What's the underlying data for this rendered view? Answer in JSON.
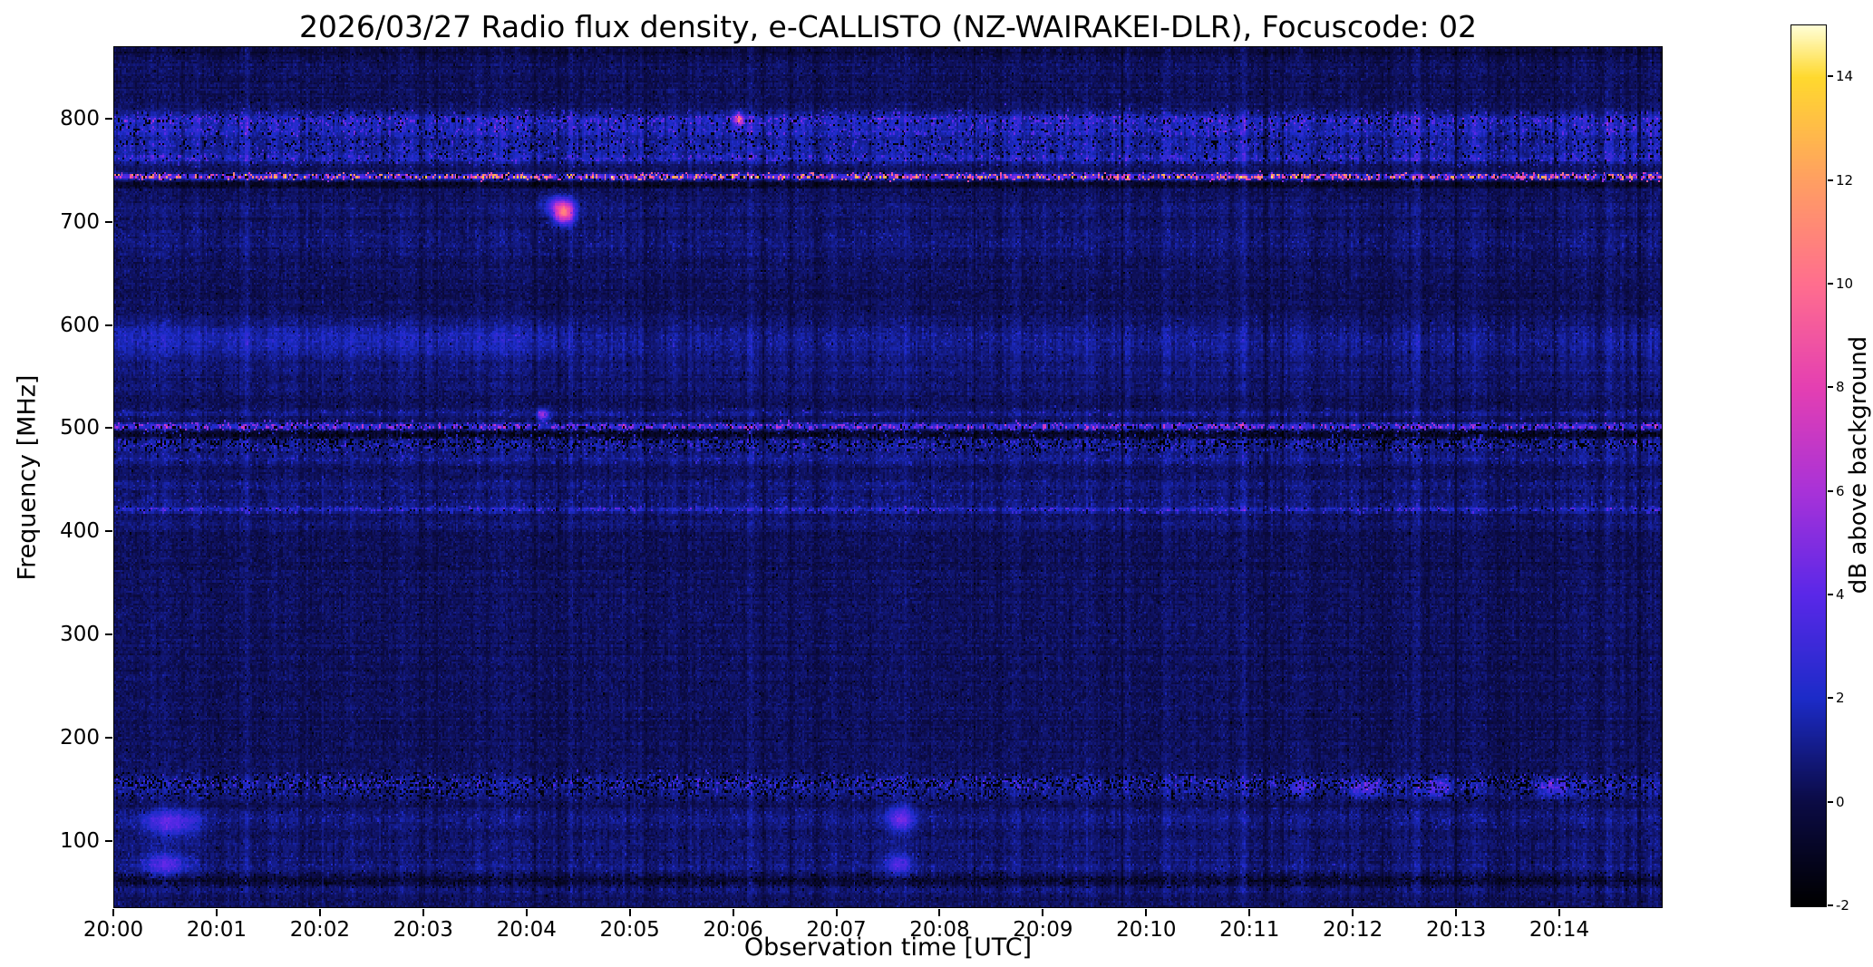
{
  "chart_data": {
    "type": "heatmap",
    "title": "2026/03/27  Radio flux density, e-CALLISTO (NZ-WAIRAKEI-DLR), Focuscode: 02",
    "xlabel": "Observation time [UTC]",
    "ylabel": "Frequency [MHz]",
    "colorbar_label": "dB above background",
    "x_ticks": [
      "20:00",
      "20:01",
      "20:02",
      "20:03",
      "20:04",
      "20:05",
      "20:06",
      "20:07",
      "20:08",
      "20:09",
      "20:10",
      "20:11",
      "20:12",
      "20:13",
      "20:14"
    ],
    "x_range_minutes": [
      0,
      15
    ],
    "y_ticks": [
      100,
      200,
      300,
      400,
      500,
      600,
      700,
      800
    ],
    "y_range_mhz": [
      35,
      870
    ],
    "colorbar_ticks": [
      -2,
      0,
      2,
      4,
      6,
      8,
      10,
      12,
      14
    ],
    "value_range_db": [
      -2,
      15
    ],
    "grid": false,
    "colormap": {
      "name": "gnuplot2-like",
      "stops": [
        [
          0.0,
          "#000000"
        ],
        [
          0.118,
          "#0b0b45"
        ],
        [
          0.235,
          "#1c2bc8"
        ],
        [
          0.353,
          "#5a28e8"
        ],
        [
          0.47,
          "#a832d8"
        ],
        [
          0.588,
          "#e43fb2"
        ],
        [
          0.706,
          "#ff6e8e"
        ],
        [
          0.824,
          "#ff9f62"
        ],
        [
          0.941,
          "#ffd92e"
        ],
        [
          1.0,
          "#ffffd8"
        ]
      ]
    },
    "noise": {
      "base": 0.35,
      "sigma": 0.3,
      "col_streak_sigma": 0.2,
      "row_sigma": 0.1,
      "pepper_p": 0.004,
      "pepper_amp": -1.8
    },
    "seed": 20260327,
    "bands": [
      {
        "f": 866,
        "w": 4,
        "a": -0.6
      },
      {
        "f": 800,
        "w": 5,
        "a": 1.6,
        "sp": 0.2,
        "sa": 2.2,
        "dp": 0.1,
        "da": -2.2
      },
      {
        "f": 789,
        "w": 4,
        "a": 1.3,
        "sp": 0.15,
        "sa": 1.8,
        "dp": 0.08,
        "da": -2.0
      },
      {
        "f": 776,
        "w": 6,
        "a": 1.1,
        "sp": 0.12,
        "sa": 1.6,
        "dp": 0.1,
        "da": -2.0
      },
      {
        "f": 763,
        "w": 4,
        "a": 1.4,
        "sp": 0.15,
        "sa": 1.8,
        "dp": 0.08,
        "da": -2.0
      },
      {
        "f": 745,
        "w": 1.8,
        "a": 3.5,
        "sp": 0.45,
        "sa": 7.5,
        "dp": 0.15,
        "da": -2.5
      },
      {
        "f": 737,
        "w": 2,
        "a": -1.2,
        "dp": 0.2,
        "da": -1.5
      },
      {
        "f": 712,
        "w": 6,
        "a": 0.3
      },
      {
        "f": 682,
        "w": 12,
        "a": 0.35,
        "sp": 0.05,
        "sa": 0.8
      },
      {
        "f": 591,
        "w": 9,
        "a": 0.7,
        "sp": 0.06,
        "sa": 0.9,
        "t0": 0,
        "t1": 4.4,
        "boost": 1.9
      },
      {
        "f": 575,
        "w": 6,
        "a": 0.5,
        "t0": 0,
        "t1": 4.4,
        "boost": 1.6
      },
      {
        "f": 558,
        "w": 6,
        "a": 0.45
      },
      {
        "f": 540,
        "w": 5,
        "a": 0.3
      },
      {
        "f": 515,
        "w": 3,
        "a": 0.5,
        "sp": 0.05,
        "sa": 1.5
      },
      {
        "f": 502,
        "w": 2.2,
        "a": 2.2,
        "sp": 0.35,
        "sa": 3.5,
        "dp": 0.12,
        "da": -2.5
      },
      {
        "f": 494,
        "w": 3,
        "a": -1.0,
        "sp": 0.08,
        "sa": 2.5,
        "dp": 0.3,
        "da": -1.8
      },
      {
        "f": 485,
        "w": 5,
        "a": 0.9,
        "sp": 0.18,
        "sa": 1.8,
        "dp": 0.25,
        "da": -2.8
      },
      {
        "f": 470,
        "w": 4,
        "a": 0.6,
        "sp": 0.08,
        "sa": 1.2
      },
      {
        "f": 445,
        "w": 4,
        "a": 0.4,
        "sp": 0.05,
        "sa": 1.0
      },
      {
        "f": 430,
        "w": 6,
        "a": 0.45,
        "sp": 0.06,
        "sa": 1.2
      },
      {
        "f": 421,
        "w": 2,
        "a": 1.3,
        "sp": 0.22,
        "sa": 1.8,
        "dp": 0.05,
        "da": -1.5
      },
      {
        "f": 408,
        "w": 5,
        "a": 0.35
      },
      {
        "f": 155,
        "w": 5,
        "a": 0.9,
        "sp": 0.2,
        "sa": 2.0,
        "dp": 0.3,
        "da": -2.5
      },
      {
        "f": 145,
        "w": 4,
        "a": 0.5,
        "sp": 0.1,
        "sa": 1.2,
        "dp": 0.2,
        "da": -2.0
      },
      {
        "f": 120,
        "w": 7,
        "a": 0.5,
        "sp": 0.06,
        "sa": 1.0
      },
      {
        "f": 95,
        "w": 6,
        "a": 0.35
      },
      {
        "f": 75,
        "w": 7,
        "a": 0.5,
        "sp": 0.05,
        "sa": 0.9
      },
      {
        "f": 60,
        "w": 4,
        "a": -0.7,
        "dp": 0.25,
        "da": -1.5
      },
      {
        "f": 50,
        "w": 4,
        "a": 0.4
      }
    ],
    "blobs": [
      {
        "t": 4.35,
        "f": 709,
        "dt": 0.07,
        "df": 7,
        "a": 9
      },
      {
        "t": 4.3,
        "f": 718,
        "dt": 0.1,
        "df": 6,
        "a": 3.5
      },
      {
        "t": 6.05,
        "f": 801,
        "dt": 0.035,
        "df": 4,
        "a": 7
      },
      {
        "t": 4.15,
        "f": 513,
        "dt": 0.04,
        "df": 4,
        "a": 5
      },
      {
        "t": 0.55,
        "f": 116,
        "dt": 0.18,
        "df": 9,
        "a": 3.2
      },
      {
        "t": 0.5,
        "f": 76,
        "dt": 0.15,
        "df": 8,
        "a": 2.8
      },
      {
        "t": 7.62,
        "f": 120,
        "dt": 0.09,
        "df": 9,
        "a": 3.4
      },
      {
        "t": 7.6,
        "f": 76,
        "dt": 0.09,
        "df": 7,
        "a": 2.6
      },
      {
        "t": 11.5,
        "f": 150,
        "dt": 0.08,
        "df": 5,
        "a": 2.2
      },
      {
        "t": 12.15,
        "f": 150,
        "dt": 0.12,
        "df": 6,
        "a": 2.8
      },
      {
        "t": 12.8,
        "f": 150,
        "dt": 0.1,
        "df": 6,
        "a": 2.6
      },
      {
        "t": 13.95,
        "f": 150,
        "dt": 0.1,
        "df": 6,
        "a": 2.8
      }
    ]
  }
}
